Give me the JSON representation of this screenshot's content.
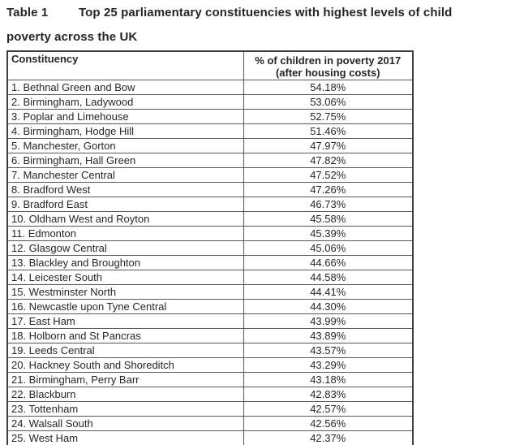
{
  "title": {
    "label": "Table 1",
    "text_line1": "Top 25 parliamentary constituencies with highest levels of child",
    "text_line2": "poverty across the UK"
  },
  "table": {
    "headers": {
      "constituency": "Constituency",
      "percent_line1": "% of children in poverty 2017",
      "percent_line2": "(after housing costs)"
    },
    "rows": [
      {
        "rank": 1,
        "name": "Bethnal Green and Bow",
        "percent": "54.18%"
      },
      {
        "rank": 2,
        "name": "Birmingham, Ladywood",
        "percent": "53.06%"
      },
      {
        "rank": 3,
        "name": "Poplar and Limehouse",
        "percent": "52.75%"
      },
      {
        "rank": 4,
        "name": "Birmingham, Hodge Hill",
        "percent": "51.46%"
      },
      {
        "rank": 5,
        "name": "Manchester, Gorton",
        "percent": "47.97%"
      },
      {
        "rank": 6,
        "name": "Birmingham, Hall Green",
        "percent": "47.82%"
      },
      {
        "rank": 7,
        "name": "Manchester Central",
        "percent": "47.52%"
      },
      {
        "rank": 8,
        "name": "Bradford West",
        "percent": "47.26%"
      },
      {
        "rank": 9,
        "name": "Bradford East",
        "percent": "46.73%"
      },
      {
        "rank": 10,
        "name": "Oldham West and Royton",
        "percent": "45.58%"
      },
      {
        "rank": 11,
        "name": "Edmonton",
        "percent": "45.39%"
      },
      {
        "rank": 12,
        "name": "Glasgow Central",
        "percent": "45.06%"
      },
      {
        "rank": 13,
        "name": "Blackley and Broughton",
        "percent": "44.66%"
      },
      {
        "rank": 14,
        "name": "Leicester South",
        "percent": "44.58%"
      },
      {
        "rank": 15,
        "name": "Westminster North",
        "percent": "44.41%"
      },
      {
        "rank": 16,
        "name": "Newcastle upon Tyne Central",
        "percent": "44.30%"
      },
      {
        "rank": 17,
        "name": "East Ham",
        "percent": "43.99%"
      },
      {
        "rank": 18,
        "name": "Holborn and St Pancras",
        "percent": "43.89%"
      },
      {
        "rank": 19,
        "name": "Leeds Central",
        "percent": "43.57%"
      },
      {
        "rank": 20,
        "name": "Hackney South and Shoreditch",
        "percent": "43.29%"
      },
      {
        "rank": 21,
        "name": "Birmingham, Perry Barr",
        "percent": "43.18%"
      },
      {
        "rank": 22,
        "name": "Blackburn",
        "percent": "42.83%"
      },
      {
        "rank": 23,
        "name": "Tottenham",
        "percent": "42.57%"
      },
      {
        "rank": 24,
        "name": "Walsall South",
        "percent": "42.56%"
      },
      {
        "rank": 25,
        "name": "West Ham",
        "percent": "42.37%"
      }
    ]
  },
  "colors": {
    "text": "#262626",
    "border_outer": "#3d3d3d",
    "border_inner": "#595959",
    "background": "#ffffff"
  }
}
